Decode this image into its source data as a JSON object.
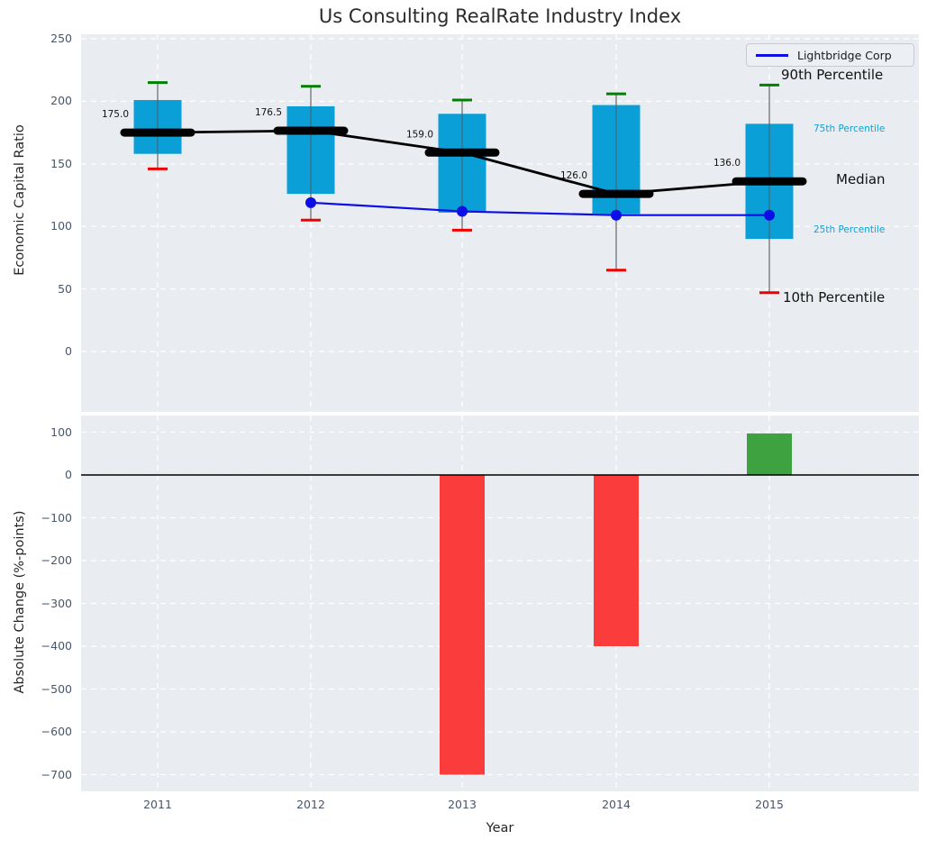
{
  "figure": {
    "title": "Us Consulting RealRate Industry Index",
    "background": "#ffffff",
    "panel_background": "#e9edf1",
    "grid_color": "#ffffff"
  },
  "chart_data": [
    {
      "type": "box",
      "panel": "top",
      "title": "Us Consulting RealRate Industry Index",
      "ylabel": "Economic Capital Ratio",
      "yticks": [
        250,
        200,
        150,
        100,
        50,
        0
      ],
      "ylim": [
        -48,
        254
      ],
      "grid": "on",
      "categories": [
        "2011",
        "2012",
        "2013",
        "2014",
        "2015"
      ],
      "series": [
        {
          "name": "90th Percentile",
          "values": [
            215,
            212,
            201,
            206,
            213
          ]
        },
        {
          "name": "75th Percentile",
          "values": [
            201,
            196,
            190,
            197,
            182
          ]
        },
        {
          "name": "Median",
          "values": [
            175.0,
            176.5,
            159.0,
            126.0,
            136.0
          ]
        },
        {
          "name": "25th Percentile",
          "values": [
            158,
            126,
            111,
            110,
            90
          ]
        },
        {
          "name": "10th Percentile",
          "values": [
            146,
            105,
            97,
            65,
            47
          ]
        },
        {
          "name": "Lightbridge Corp",
          "values": [
            null,
            119,
            112,
            109,
            109
          ]
        }
      ],
      "median_labels": [
        "175.0",
        "176.5",
        "159.0",
        "126.0",
        "136.0"
      ],
      "legend": {
        "position": "upper right",
        "label": "Lightbridge Corp"
      },
      "annotations": [
        {
          "text": "90th Percentile",
          "size": "big",
          "color": "#111111"
        },
        {
          "text": "75th Percentile",
          "size": "small",
          "color": "#12a0d7"
        },
        {
          "text": "Median",
          "size": "big",
          "color": "#111111"
        },
        {
          "text": "25th Percentile",
          "size": "small",
          "color": "#12a0d7"
        },
        {
          "text": "10th Percentile",
          "size": "big",
          "color": "#111111"
        }
      ],
      "colors": {
        "box": "#0a9fd6",
        "median_line": "#000000",
        "p90_cap": "#008000",
        "p10_cap": "#f00000",
        "whisker": "#666666",
        "company_line": "#0d0de6"
      }
    },
    {
      "type": "bar",
      "panel": "bottom",
      "ylabel": "Absolute Change (%-points)",
      "xlabel": "Year",
      "yticks": [
        100,
        0,
        -100,
        -200,
        -300,
        -400,
        -500,
        -600,
        -700
      ],
      "ylim": [
        -739,
        145
      ],
      "grid": "on",
      "categories": [
        "2011",
        "2012",
        "2013",
        "2014",
        "2015"
      ],
      "values": [
        0,
        0,
        -700,
        -400,
        97
      ],
      "colors": {
        "positive": "#3da23f",
        "negative": "#fa3c3c",
        "zero_line": "#000000"
      }
    }
  ]
}
